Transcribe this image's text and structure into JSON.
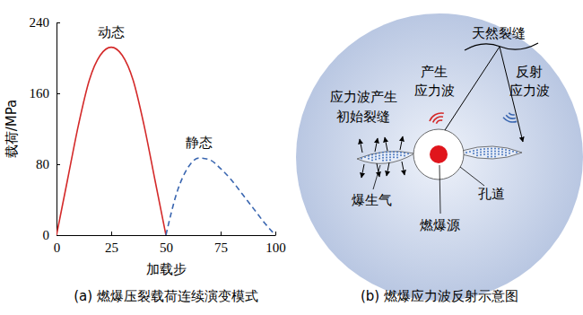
{
  "chart_data": {
    "type": "line",
    "title": "(a) 燃爆压裂载荷连续演变模式",
    "x_label": "加载步",
    "y_label": "载荷/MPa",
    "x": [
      0,
      5,
      10,
      15,
      20,
      25,
      30,
      35,
      40,
      45,
      50,
      55,
      60,
      65,
      70,
      75,
      80,
      85,
      90,
      95,
      100
    ],
    "series": [
      {
        "name": "动态",
        "color": "#d42a2a",
        "line_style": "solid",
        "values": [
          0,
          62,
          124,
          175,
          203,
          212,
          203,
          175,
          124,
          62,
          0,
          null,
          null,
          null,
          null,
          null,
          null,
          null,
          null,
          null,
          null
        ]
      },
      {
        "name": "静态",
        "color": "#3a66b0",
        "line_style": "dashed",
        "values": [
          null,
          null,
          null,
          null,
          null,
          null,
          null,
          null,
          null,
          null,
          0,
          48,
          76,
          87,
          85,
          75,
          62,
          46,
          30,
          14,
          0
        ]
      }
    ],
    "xlim": [
      0,
      100
    ],
    "xticks": [
      0,
      25,
      50,
      75,
      100
    ],
    "ylim": [
      0,
      240
    ],
    "yticks": [
      0,
      80,
      160,
      240
    ],
    "grid": false
  },
  "diagram": {
    "caption": "(b) 燃爆应力波反射示意图",
    "nodes": {
      "natural_fracture": "天然裂缝",
      "generated_wave": [
        "产生",
        "应力波"
      ],
      "reflected_wave": [
        "反射",
        "应力波"
      ],
      "initial_crack": [
        "应力波产生",
        "初始裂缝"
      ],
      "blast_gas": "爆生气",
      "borehole": "孔道",
      "source": "燃爆源"
    }
  }
}
